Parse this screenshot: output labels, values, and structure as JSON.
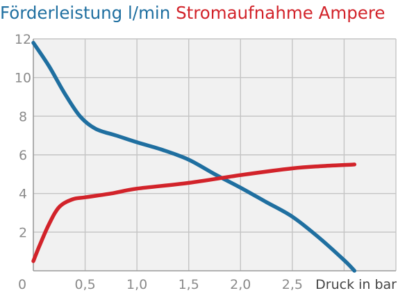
{
  "chart_data": {
    "type": "line",
    "title_parts": [
      {
        "text": "Förderleistung l/min",
        "color": "#1f6fa0"
      },
      {
        "text": "Stromaufnahme Ampere",
        "color": "#d2232a"
      }
    ],
    "xlabel": "Druck in bar",
    "x_ticks": [
      "0",
      "0,5",
      "1,0",
      "1,5",
      "2,0",
      "2,5"
    ],
    "y_ticks": [
      "2",
      "4",
      "6",
      "8",
      "10",
      "12"
    ],
    "xlim": [
      0,
      3.5
    ],
    "ylim": [
      0,
      12
    ],
    "grid": true,
    "plot_background": "#f1f1f1",
    "grid_color": "#c4c4c4",
    "series": [
      {
        "name": "Förderleistung l/min",
        "color": "#1f6fa0",
        "points": [
          [
            0,
            11.8
          ],
          [
            0.15,
            10.6
          ],
          [
            0.3,
            9.2
          ],
          [
            0.45,
            8.0
          ],
          [
            0.6,
            7.35
          ],
          [
            0.8,
            7.0
          ],
          [
            1.0,
            6.65
          ],
          [
            1.25,
            6.25
          ],
          [
            1.5,
            5.75
          ],
          [
            1.75,
            5.0
          ],
          [
            2.0,
            4.3
          ],
          [
            2.25,
            3.55
          ],
          [
            2.5,
            2.8
          ],
          [
            2.75,
            1.75
          ],
          [
            3.0,
            0.55
          ],
          [
            3.1,
            0.0
          ]
        ]
      },
      {
        "name": "Stromaufnahme Ampere",
        "color": "#d2232a",
        "points": [
          [
            0,
            0.5
          ],
          [
            0.06,
            1.3
          ],
          [
            0.15,
            2.4
          ],
          [
            0.25,
            3.3
          ],
          [
            0.38,
            3.7
          ],
          [
            0.5,
            3.8
          ],
          [
            0.75,
            4.0
          ],
          [
            1.0,
            4.25
          ],
          [
            1.5,
            4.55
          ],
          [
            2.0,
            4.95
          ],
          [
            2.5,
            5.3
          ],
          [
            2.8,
            5.42
          ],
          [
            3.1,
            5.5
          ]
        ]
      }
    ]
  }
}
